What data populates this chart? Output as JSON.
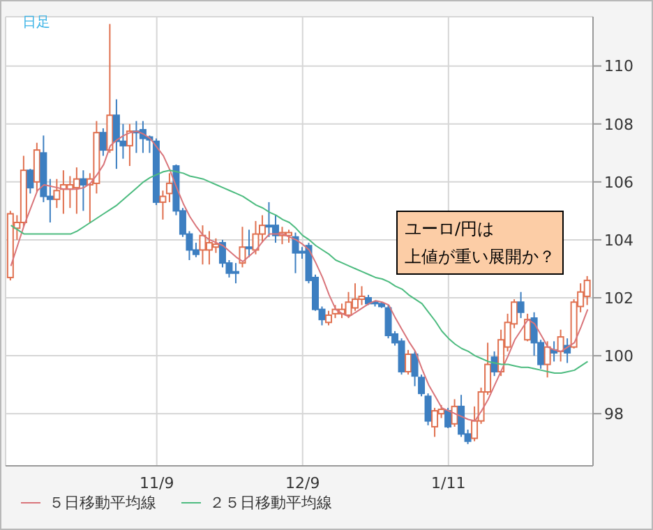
{
  "chart_data": {
    "type": "candlestick",
    "annotations": [
      "日足",
      "ユーロ/円は",
      "上値が重い展開か？"
    ],
    "categories": [
      null,
      null,
      null,
      null,
      null,
      null,
      null,
      null,
      null,
      null,
      null,
      null,
      null,
      null,
      null,
      null,
      null,
      null,
      null,
      null,
      null,
      null,
      "11/9",
      null,
      null,
      null,
      null,
      null,
      null,
      null,
      null,
      null,
      null,
      null,
      null,
      null,
      null,
      null,
      null,
      null,
      null,
      null,
      null,
      null,
      "12/9",
      null,
      null,
      null,
      null,
      null,
      null,
      null,
      null,
      null,
      null,
      null,
      null,
      null,
      null,
      null,
      null,
      null,
      null,
      null,
      null,
      null,
      "1/11",
      null,
      null,
      null,
      null,
      null,
      null,
      null,
      null,
      null,
      null,
      null,
      null,
      null,
      null,
      null,
      null,
      null,
      null,
      null,
      null,
      null
    ],
    "ohlc": [
      [
        102.7,
        105.0,
        102.6,
        104.9
      ],
      [
        104.4,
        104.85,
        104.0,
        104.6
      ],
      [
        104.6,
        106.9,
        104.45,
        106.4
      ],
      [
        106.4,
        106.45,
        105.6,
        105.8
      ],
      [
        106.0,
        107.35,
        105.65,
        107.1
      ],
      [
        107.0,
        107.6,
        105.3,
        105.5
      ],
      [
        105.5,
        106.1,
        104.6,
        105.4
      ],
      [
        105.4,
        106.1,
        105.1,
        105.7
      ],
      [
        105.75,
        106.4,
        104.9,
        105.9
      ],
      [
        105.75,
        106.2,
        105.1,
        105.9
      ],
      [
        105.8,
        106.5,
        104.9,
        106.1
      ],
      [
        106.1,
        106.4,
        105.0,
        105.9
      ],
      [
        105.9,
        106.3,
        104.6,
        106.1
      ],
      [
        105.95,
        108.1,
        105.6,
        107.7
      ],
      [
        107.7,
        107.85,
        106.9,
        107.1
      ],
      [
        107.1,
        111.45,
        107.0,
        108.3
      ],
      [
        108.3,
        108.85,
        106.45,
        107.4
      ],
      [
        107.4,
        108.0,
        106.8,
        107.25
      ],
      [
        107.25,
        108.0,
        106.55,
        107.75
      ],
      [
        107.75,
        108.1,
        107.0,
        107.7
      ],
      [
        107.8,
        108.1,
        107.0,
        107.5
      ],
      [
        107.55,
        107.6,
        107.0,
        107.45
      ],
      [
        107.4,
        107.5,
        105.2,
        105.3
      ],
      [
        105.3,
        105.7,
        104.7,
        105.5
      ],
      [
        105.6,
        106.3,
        105.3,
        105.95
      ],
      [
        106.55,
        106.6,
        104.85,
        105.0
      ],
      [
        105.0,
        105.1,
        104.1,
        104.2
      ],
      [
        104.2,
        104.3,
        103.3,
        103.65
      ],
      [
        103.65,
        103.9,
        103.4,
        103.5
      ],
      [
        103.65,
        104.5,
        103.15,
        104.15
      ],
      [
        103.65,
        104.3,
        103.15,
        103.9
      ],
      [
        103.75,
        104.05,
        103.55,
        103.85
      ],
      [
        103.9,
        104.0,
        103.05,
        103.2
      ],
      [
        103.2,
        103.3,
        102.7,
        102.85
      ],
      [
        102.9,
        103.2,
        102.5,
        102.85
      ],
      [
        103.2,
        104.45,
        103.05,
        103.75
      ],
      [
        103.75,
        104.35,
        103.4,
        103.7
      ],
      [
        103.65,
        104.65,
        103.5,
        104.2
      ],
      [
        104.2,
        104.85,
        103.9,
        104.5
      ],
      [
        104.5,
        105.3,
        104.1,
        104.45
      ],
      [
        104.5,
        104.85,
        103.9,
        104.15
      ],
      [
        104.15,
        104.45,
        103.85,
        104.25
      ],
      [
        104.15,
        104.35,
        103.9,
        104.25
      ],
      [
        104.1,
        104.25,
        102.85,
        103.55
      ],
      [
        103.6,
        103.75,
        103.35,
        103.55
      ],
      [
        103.8,
        103.9,
        102.5,
        102.6
      ],
      [
        102.7,
        102.8,
        101.55,
        101.6
      ],
      [
        101.6,
        101.7,
        101.05,
        101.25
      ],
      [
        101.15,
        101.55,
        101.05,
        101.4
      ],
      [
        101.45,
        101.75,
        101.3,
        101.6
      ],
      [
        101.45,
        101.8,
        101.3,
        101.6
      ],
      [
        101.4,
        102.2,
        101.3,
        101.85
      ],
      [
        101.65,
        102.5,
        101.55,
        101.95
      ],
      [
        101.95,
        102.4,
        101.75,
        102.05
      ],
      [
        102.0,
        102.1,
        101.75,
        101.8
      ],
      [
        101.85,
        101.9,
        101.7,
        101.8
      ],
      [
        101.8,
        101.85,
        101.65,
        101.7
      ],
      [
        101.65,
        101.75,
        100.6,
        100.7
      ],
      [
        100.75,
        100.85,
        100.35,
        100.45
      ],
      [
        100.5,
        100.6,
        99.35,
        99.45
      ],
      [
        99.45,
        100.2,
        99.35,
        100.05
      ],
      [
        100.05,
        100.15,
        98.95,
        99.3
      ],
      [
        99.25,
        99.35,
        98.6,
        98.7
      ],
      [
        98.6,
        98.7,
        97.6,
        97.75
      ],
      [
        97.55,
        98.2,
        97.2,
        98.1
      ],
      [
        98.0,
        98.3,
        97.85,
        98.15
      ],
      [
        98.1,
        98.2,
        97.5,
        97.55
      ],
      [
        97.65,
        98.5,
        97.55,
        98.25
      ],
      [
        98.25,
        98.65,
        97.2,
        97.3
      ],
      [
        97.3,
        97.45,
        96.95,
        97.05
      ],
      [
        97.15,
        98.25,
        97.05,
        97.75
      ],
      [
        97.75,
        98.9,
        97.65,
        98.75
      ],
      [
        98.75,
        100.45,
        98.65,
        99.7
      ],
      [
        99.95,
        100.15,
        99.3,
        99.45
      ],
      [
        99.45,
        100.9,
        99.3,
        100.55
      ],
      [
        100.3,
        101.45,
        100.15,
        101.15
      ],
      [
        101.1,
        101.95,
        100.95,
        101.85
      ],
      [
        101.85,
        102.2,
        101.3,
        101.5
      ],
      [
        100.55,
        101.45,
        100.5,
        101.25
      ],
      [
        101.3,
        101.5,
        100.0,
        100.45
      ],
      [
        100.45,
        100.55,
        99.55,
        99.7
      ],
      [
        99.7,
        100.5,
        99.25,
        100.3
      ],
      [
        100.2,
        100.5,
        99.8,
        100.1
      ],
      [
        100.15,
        100.9,
        99.8,
        100.65
      ],
      [
        100.35,
        100.6,
        99.75,
        100.1
      ],
      [
        100.3,
        101.95,
        100.25,
        101.85
      ],
      [
        101.7,
        102.5,
        101.5,
        102.2
      ],
      [
        102.05,
        102.75,
        101.75,
        102.6
      ]
    ],
    "colors": [
      "#e0704f",
      "#e0704f",
      "#e0704f",
      "#3d7fc1",
      "#e0704f",
      "#3d7fc1",
      "#3d7fc1",
      "#e0704f",
      "#e0704f",
      "#e0704f",
      "#e0704f",
      "#3d7fc1",
      "#e0704f",
      "#e0704f",
      "#3d7fc1",
      "#e0704f",
      "#3d7fc1",
      "#3d7fc1",
      "#e0704f",
      "#3d7fc1",
      "#3d7fc1",
      "#3d7fc1",
      "#3d7fc1",
      "#e0704f",
      "#e0704f",
      "#3d7fc1",
      "#3d7fc1",
      "#3d7fc1",
      "#3d7fc1",
      "#e0704f",
      "#e0704f",
      "#e0704f",
      "#3d7fc1",
      "#3d7fc1",
      "#3d7fc1",
      "#e0704f",
      "#3d7fc1",
      "#e0704f",
      "#e0704f",
      "#3d7fc1",
      "#3d7fc1",
      "#e0704f",
      "#e0704f",
      "#3d7fc1",
      "#3d7fc1",
      "#3d7fc1",
      "#3d7fc1",
      "#3d7fc1",
      "#e0704f",
      "#e0704f",
      "#e0704f",
      "#e0704f",
      "#e0704f",
      "#e0704f",
      "#3d7fc1",
      "#3d7fc1",
      "#3d7fc1",
      "#3d7fc1",
      "#3d7fc1",
      "#3d7fc1",
      "#e0704f",
      "#3d7fc1",
      "#3d7fc1",
      "#3d7fc1",
      "#e0704f",
      "#e0704f",
      "#3d7fc1",
      "#e0704f",
      "#3d7fc1",
      "#3d7fc1",
      "#e0704f",
      "#e0704f",
      "#e0704f",
      "#3d7fc1",
      "#e0704f",
      "#e0704f",
      "#e0704f",
      "#3d7fc1",
      "#e0704f",
      "#3d7fc1",
      "#3d7fc1",
      "#e0704f",
      "#3d7fc1",
      "#e0704f",
      "#3d7fc1",
      "#e0704f",
      "#e0704f",
      "#e0704f"
    ],
    "series": [
      {
        "type": "line",
        "name": "５日移動平均線",
        "color": "#d9747a",
        "values": [
          103.1,
          103.8,
          104.5,
          105.1,
          105.7,
          105.9,
          105.85,
          105.8,
          105.75,
          105.75,
          105.75,
          105.8,
          105.95,
          106.25,
          106.6,
          107.25,
          107.45,
          107.6,
          107.7,
          107.75,
          107.65,
          107.5,
          107.2,
          106.9,
          106.4,
          105.8,
          105.25,
          104.8,
          104.45,
          104.15,
          104.0,
          103.9,
          103.8,
          103.6,
          103.4,
          103.25,
          103.45,
          103.65,
          103.95,
          104.2,
          104.2,
          104.2,
          104.1,
          104.0,
          103.85,
          103.65,
          103.2,
          102.7,
          102.1,
          101.6,
          101.45,
          101.35,
          101.5,
          101.65,
          101.8,
          101.9,
          101.85,
          101.75,
          101.3,
          100.9,
          100.5,
          100.15,
          99.55,
          99.0,
          98.6,
          98.2,
          98.1,
          98.0,
          97.9,
          97.8,
          97.75,
          98.1,
          98.5,
          99.0,
          99.5,
          100.0,
          100.55,
          100.9,
          101.25,
          101.1,
          100.7,
          100.3,
          100.2,
          100.15,
          100.3,
          100.45,
          101.0,
          101.6
        ]
      },
      {
        "type": "line",
        "name": "２５日移動平均線",
        "color": "#4cbb7f",
        "values": [
          104.5,
          104.35,
          104.2,
          104.2,
          104.2,
          104.2,
          104.2,
          104.2,
          104.2,
          104.2,
          104.3,
          104.45,
          104.6,
          104.75,
          104.9,
          105.05,
          105.2,
          105.4,
          105.6,
          105.8,
          106.0,
          106.15,
          106.25,
          106.35,
          106.4,
          106.35,
          106.3,
          106.2,
          106.15,
          106.1,
          106.0,
          105.9,
          105.8,
          105.7,
          105.6,
          105.5,
          105.35,
          105.2,
          105.1,
          104.95,
          104.85,
          104.7,
          104.6,
          104.4,
          104.15,
          104.0,
          103.8,
          103.65,
          103.5,
          103.3,
          103.2,
          103.1,
          103.0,
          102.9,
          102.8,
          102.7,
          102.65,
          102.55,
          102.4,
          102.3,
          102.1,
          101.95,
          101.8,
          101.5,
          101.2,
          100.85,
          100.6,
          100.4,
          100.25,
          100.15,
          100.0,
          99.9,
          99.8,
          99.75,
          99.7,
          99.7,
          99.65,
          99.6,
          99.6,
          99.55,
          99.5,
          99.45,
          99.4,
          99.4,
          99.45,
          99.5,
          99.65,
          99.8
        ]
      }
    ],
    "ylim": [
      96.2,
      111.7
    ],
    "yticks": [
      98,
      100,
      102,
      104,
      106,
      108,
      110
    ],
    "grid": true,
    "legend": "bottom"
  }
}
